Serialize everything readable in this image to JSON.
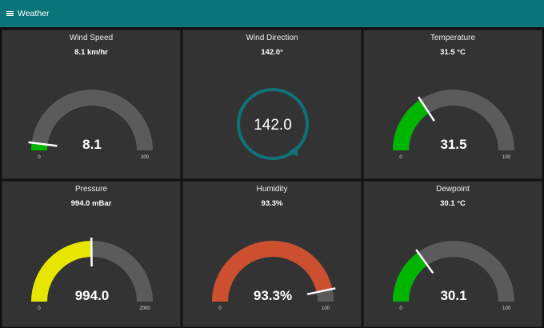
{
  "header": {
    "title": "Weather",
    "menu_icon": "hamburger-menu-icon"
  },
  "colors": {
    "header": "#097479",
    "card": "#333333",
    "track": "#5b5b5b",
    "needle": "#ffffff",
    "compass": "#0f7278",
    "green": "#00b500",
    "yellow": "#e6e600",
    "orange": "#cc4f30"
  },
  "gauges": [
    {
      "id": "wind-speed",
      "title": "Wind Speed",
      "subtitle": "8.1 km/hr",
      "value": 8.1,
      "value_label": "8.1",
      "min": 0,
      "max": 200,
      "min_label": "0",
      "max_label": "200",
      "color": "#00b500"
    },
    {
      "id": "temperature",
      "title": "Temperature",
      "subtitle": "31.5 °C",
      "value": 31.5,
      "value_label": "31.5",
      "min": 0,
      "max": 100,
      "min_label": "0",
      "max_label": "100",
      "color": "#00b500"
    },
    {
      "id": "pressure",
      "title": "Pressure",
      "subtitle": "994.0 mBar",
      "value": 994.0,
      "value_label": "994.0",
      "min": 0,
      "max": 2000,
      "min_label": "0",
      "max_label": "2000",
      "color": "#e6e600"
    },
    {
      "id": "humidity",
      "title": "Humidity",
      "subtitle": "93.3%",
      "value": 93.3,
      "value_label": "93.3%",
      "min": 0,
      "max": 100,
      "min_label": "0",
      "max_label": "100",
      "color": "#cc4f30"
    },
    {
      "id": "dewpoint",
      "title": "Dewpoint",
      "subtitle": "30.1 °C",
      "value": 30.1,
      "value_label": "30.1",
      "min": 0,
      "max": 100,
      "min_label": "0",
      "max_label": "100",
      "color": "#00b500"
    }
  ],
  "compass": {
    "id": "wind-direction",
    "title": "Wind Direction",
    "subtitle": "142.0°",
    "value": 142.0,
    "value_label": "142.0"
  }
}
